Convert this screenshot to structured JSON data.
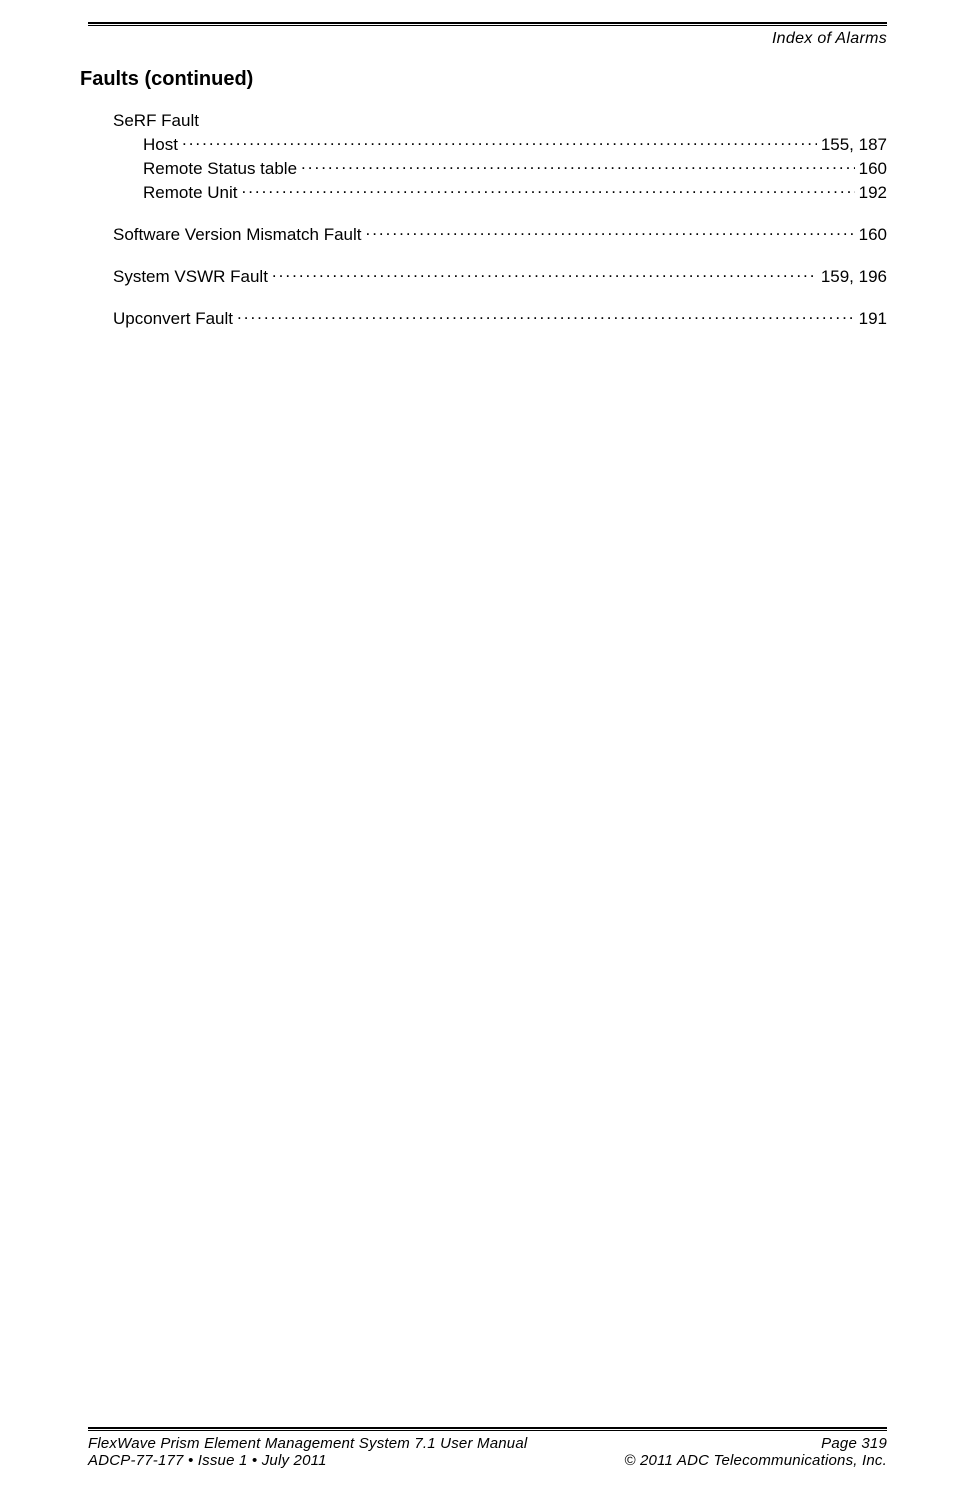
{
  "header": {
    "running_title": "Index of Alarms"
  },
  "section": {
    "heading": "Faults (continued)"
  },
  "entries": [
    {
      "type": "group",
      "label": "SeRF Fault",
      "children": [
        {
          "label": "Host",
          "pages": "155, 187"
        },
        {
          "label": "Remote Status table",
          "pages": "160"
        },
        {
          "label": "Remote Unit",
          "pages": "192"
        }
      ]
    },
    {
      "type": "single",
      "label": "Software Version Mismatch Fault",
      "pages": "160"
    },
    {
      "type": "single",
      "label": "System VSWR Fault",
      "pages": "159, 196"
    },
    {
      "type": "single",
      "label": "Upconvert Fault",
      "pages": "191"
    }
  ],
  "footer": {
    "left_line1": "FlexWave Prism Element Management System 7.1 User Manual",
    "right_line1": "Page 319",
    "left_line2": "ADCP-77-177  •  Issue 1  •  July 2011",
    "right_line2": "© 2011 ADC Telecommunications, Inc."
  },
  "colors": {
    "text": "#000000",
    "background": "#ffffff"
  },
  "typography": {
    "body_fontsize": 17,
    "heading_fontsize": 20,
    "header_fontsize": 16,
    "footer_fontsize": 15
  }
}
